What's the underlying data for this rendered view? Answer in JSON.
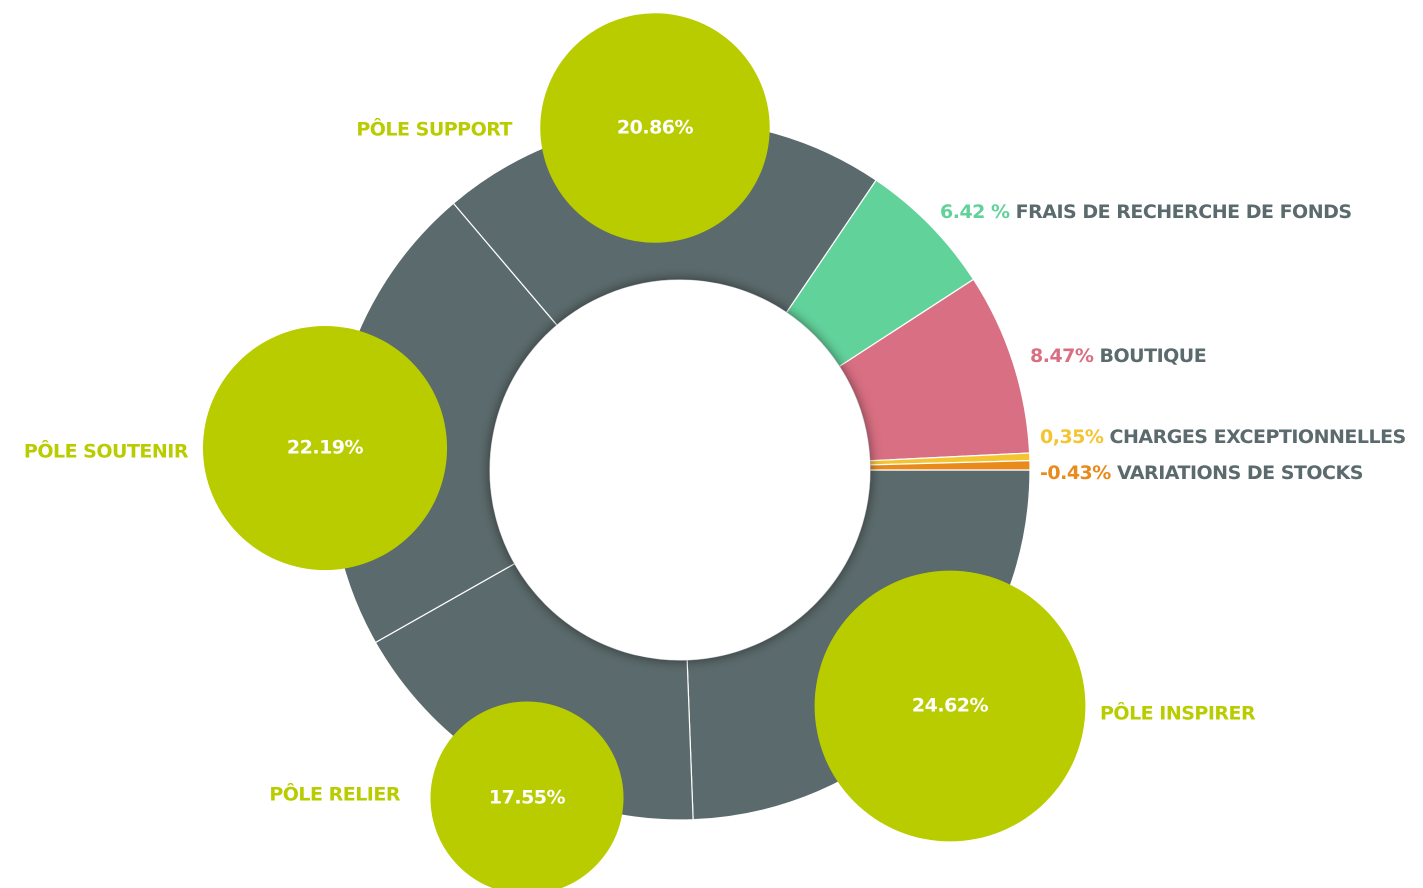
{
  "chart_data": {
    "type": "donut",
    "categories": [
      "PÔLE INSPIRER",
      "PÔLE RELIER",
      "PÔLE SOUTENIR",
      "PÔLE SUPPORT",
      "FRAIS DE RECHERCHE DE FONDS",
      "BOUTIQUE",
      "CHARGES EXCEPTIONNELLES",
      "VARIATIONS DE STOCKS"
    ],
    "values": [
      24.62,
      17.55,
      22.19,
      20.86,
      6.42,
      8.47,
      0.35,
      -0.43
    ],
    "value_labels": [
      "24.62%",
      "17.55%",
      "22.19%",
      "20.86%",
      "6.42 %",
      "8.47%",
      "0,35%",
      "-0.43%"
    ],
    "colors": [
      "#5b6a6c",
      "#5b6a6c",
      "#5b6a6c",
      "#5b6a6c",
      "#62d29b",
      "#d86f82",
      "#f4c431",
      "#e88a1c"
    ],
    "bubbles": [
      true,
      true,
      true,
      true,
      false,
      false,
      false,
      false
    ],
    "bubble_color": "#b9cc00",
    "name_color": "#5b6a6c"
  }
}
